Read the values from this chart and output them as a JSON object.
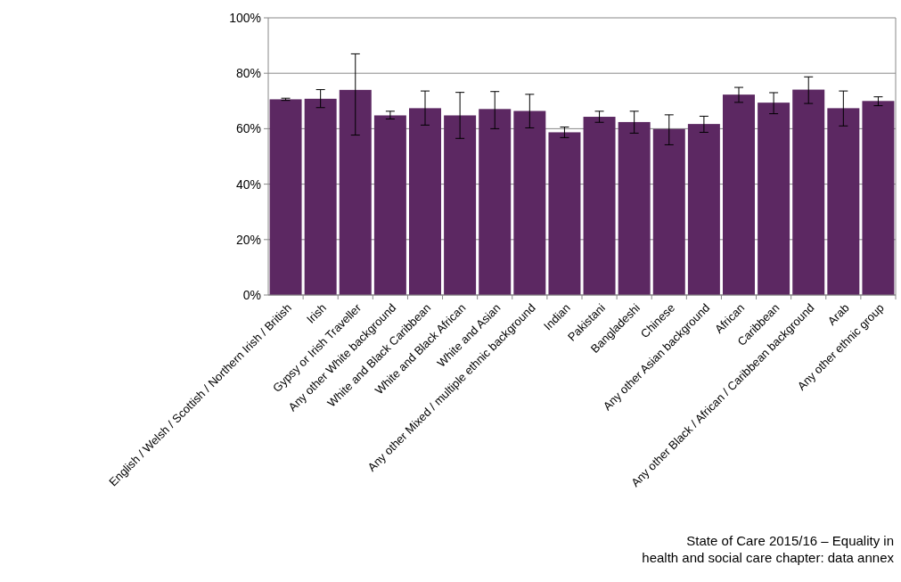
{
  "chart_data": {
    "type": "bar",
    "categories": [
      "English / Welsh / Scottish / Northern Irish / British",
      "Irish",
      "Gypsy or Irish Traveller",
      "Any other White background",
      "White and Black Caribbean",
      "White and Black African",
      "White and Asian",
      "Any other Mixed / multiple ethnic background",
      "Indian",
      "Pakistani",
      "Bangladeshi",
      "Chinese",
      "Any other Asian background",
      "African",
      "Caribbean",
      "Any other Black / African / Caribbean background",
      "Arab",
      "Any other ethnic group"
    ],
    "series": [
      {
        "color": "#5c2862",
        "values": [
          70.6,
          70.8,
          74.0,
          64.8,
          67.4,
          64.8,
          67.1,
          66.4,
          58.7,
          64.3,
          62.4,
          59.9,
          61.7,
          72.3,
          69.4,
          74.1,
          67.4,
          70.0
        ],
        "errors": [
          [
            70.2,
            71.0
          ],
          [
            67.6,
            74.1
          ],
          [
            57.7,
            87.0
          ],
          [
            63.5,
            66.3
          ],
          [
            61.3,
            73.6
          ],
          [
            56.5,
            73.1
          ],
          [
            60.0,
            73.4
          ],
          [
            60.3,
            72.4
          ],
          [
            56.8,
            60.6
          ],
          [
            62.3,
            66.3
          ],
          [
            58.4,
            66.3
          ],
          [
            54.2,
            65.0
          ],
          [
            58.7,
            64.5
          ],
          [
            69.5,
            74.9
          ],
          [
            65.4,
            73.0
          ],
          [
            69.1,
            78.7
          ],
          [
            61.0,
            73.6
          ],
          [
            68.3,
            71.5
          ]
        ]
      }
    ],
    "ylim": [
      0,
      100
    ],
    "yticks": [
      {
        "value": 0,
        "label": "0%"
      },
      {
        "value": 20,
        "label": "20%"
      },
      {
        "value": 40,
        "label": "40%"
      },
      {
        "value": 60,
        "label": "60%"
      },
      {
        "value": 80,
        "label": "80%"
      },
      {
        "value": 100,
        "label": "100%"
      }
    ],
    "grid": "y",
    "annotations": [
      "State of Care 2015/16 – Equality in health and social care chapter: data annex"
    ]
  }
}
